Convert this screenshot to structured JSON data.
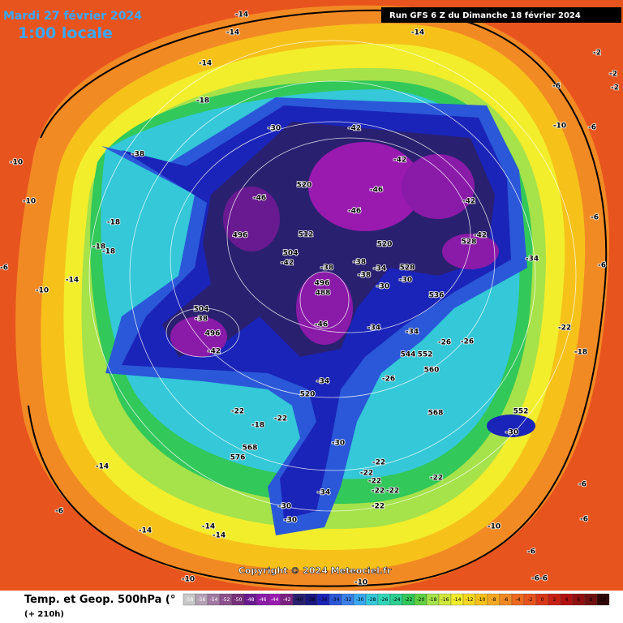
{
  "header": {
    "date": "Mardi 27 février 2024",
    "time": "1:00 locale",
    "run": "Run GFS 6 Z du Dimanche 18 février 2024"
  },
  "map": {
    "labels": [
      "-14",
      "-14",
      "-14",
      "-14",
      "-18",
      "-30",
      "-42",
      "-42",
      "-38",
      "520",
      "-46",
      "-46",
      "-46",
      "-42",
      "496",
      "512",
      "520",
      "-42",
      "528",
      "504",
      "-42",
      "-38",
      "-38",
      "-34",
      "528",
      "-38",
      "496",
      "488",
      "-30",
      "-30",
      "536",
      "-34",
      "504",
      "-38",
      "496",
      "-42",
      "-46",
      "-34",
      "-34",
      "544",
      "552",
      "-26",
      "560",
      "-26",
      "-34",
      "520",
      "568",
      "-22",
      "-18",
      "-22",
      "568",
      "576",
      "-30",
      "-22",
      "-22",
      "-22",
      "-22",
      "-22",
      "-22",
      "-34",
      "-30",
      "-30",
      "-22",
      "-30",
      "552",
      "-22",
      "-18",
      "-26",
      "-14",
      "-6",
      "-14",
      "-14",
      "-14",
      "-10",
      "-10",
      "-10",
      "-10",
      "-10",
      "-18",
      "-18",
      "-18",
      "-14",
      "-10",
      "-6",
      "-10",
      "-6",
      "-6",
      "-2",
      "-2",
      "-2",
      "-6",
      "-6",
      "-6",
      "-6",
      "-6",
      "-6-6"
    ],
    "copyright": "Copyright © 2024 Meteociel.fr"
  },
  "footer": {
    "title": "Temp. et Geop. 500hPa (°",
    "lead": "(+ 210h)",
    "scale": [
      "-58",
      "-56",
      "-54",
      "-52",
      "-50",
      "-48",
      "-46",
      "-44",
      "-42",
      "-40",
      "-38",
      "-36",
      "-34",
      "-32",
      "-30",
      "-28",
      "-26",
      "-24",
      "-22",
      "-20",
      "-18",
      "-16",
      "-14",
      "-12",
      "-10",
      "-8",
      "-6",
      "-4",
      "-2",
      "0",
      "2",
      "4",
      "6",
      "8",
      "10"
    ]
  }
}
